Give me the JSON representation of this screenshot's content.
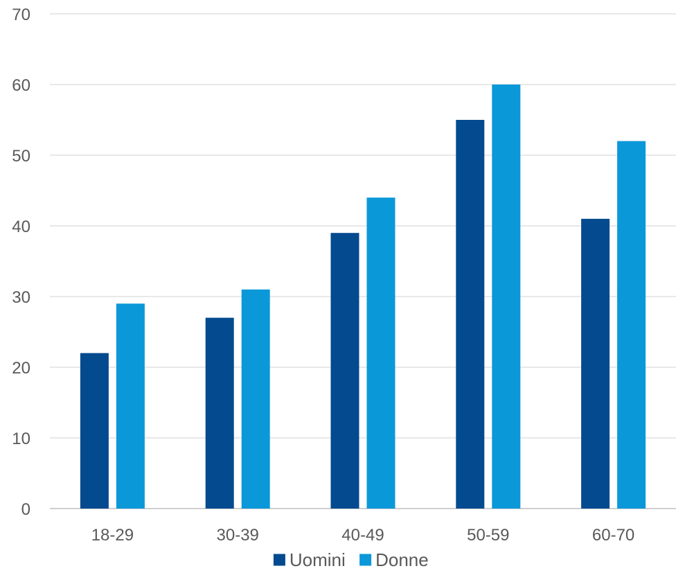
{
  "chart_data": {
    "type": "bar",
    "title": "",
    "xlabel": "",
    "ylabel": "",
    "categories": [
      "18-29",
      "30-39",
      "40-49",
      "50-59",
      "60-70"
    ],
    "series": [
      {
        "name": "Uomini",
        "color": "#034a8f",
        "values": [
          22,
          27,
          39,
          55,
          41
        ]
      },
      {
        "name": "Donne",
        "color": "#0b98d9",
        "values": [
          29,
          31,
          44,
          60,
          52
        ]
      }
    ],
    "ylim": [
      0,
      70
    ],
    "yticks": [
      "0",
      "10",
      "20",
      "30",
      "40",
      "50",
      "60",
      "70"
    ],
    "grid": true,
    "legend_position": "bottom"
  }
}
